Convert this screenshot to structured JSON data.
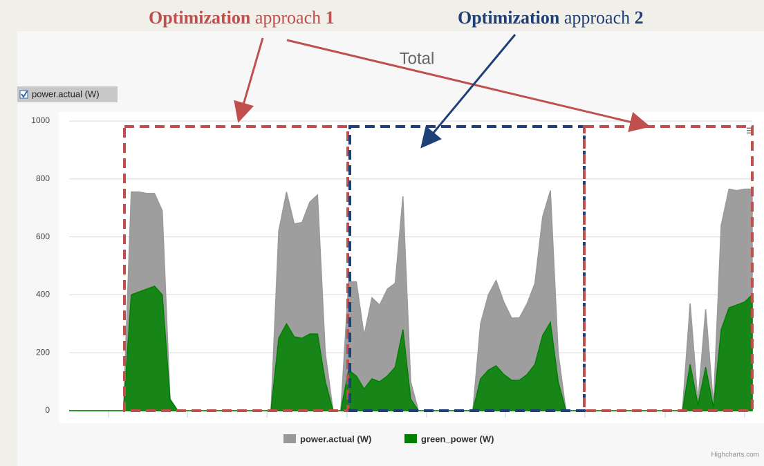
{
  "chart_data": {
    "type": "area",
    "title": "Total",
    "checkbox_label": "power.actual (W)",
    "credit": "Highcharts.com",
    "annotations": [
      {
        "bold": "Optimization",
        "text": "approach",
        "number": "1",
        "color": "#c0504d"
      },
      {
        "bold": "Optimization",
        "text": "approach",
        "number": "2",
        "color": "#1f3f77"
      }
    ],
    "ylim": [
      0,
      1000
    ],
    "yticks": [
      0,
      200,
      400,
      600,
      800,
      1000
    ],
    "grid": true,
    "series": [
      {
        "name": "power.actual (W)",
        "color": "#999999",
        "values": [
          0,
          0,
          0,
          0,
          0,
          0,
          0,
          0,
          755,
          755,
          750,
          750,
          690,
          40,
          0,
          0,
          0,
          0,
          0,
          0,
          0,
          0,
          0,
          0,
          0,
          0,
          0,
          620,
          755,
          645,
          650,
          720,
          745,
          200,
          0,
          0,
          445,
          445,
          260,
          390,
          365,
          420,
          440,
          740,
          100,
          0,
          0,
          0,
          0,
          0,
          0,
          0,
          0,
          300,
          400,
          450,
          375,
          320,
          320,
          370,
          440,
          670,
          760,
          200,
          0,
          0,
          0,
          0,
          0,
          0,
          0,
          0,
          0,
          0,
          0,
          0,
          0,
          0,
          0,
          0,
          370,
          30,
          350,
          20,
          640,
          765,
          760,
          765,
          765
        ]
      },
      {
        "name": "green_power (W)",
        "color": "#008000",
        "values": [
          0,
          0,
          0,
          0,
          0,
          0,
          0,
          0,
          400,
          410,
          420,
          430,
          400,
          40,
          0,
          0,
          0,
          0,
          0,
          0,
          0,
          0,
          0,
          0,
          0,
          0,
          0,
          250,
          300,
          255,
          250,
          265,
          265,
          100,
          0,
          0,
          140,
          120,
          75,
          110,
          100,
          120,
          150,
          280,
          40,
          0,
          0,
          0,
          0,
          0,
          0,
          0,
          0,
          110,
          140,
          155,
          125,
          105,
          105,
          125,
          160,
          260,
          305,
          100,
          0,
          0,
          0,
          0,
          0,
          0,
          0,
          0,
          0,
          0,
          0,
          0,
          0,
          0,
          0,
          0,
          160,
          20,
          150,
          10,
          280,
          355,
          365,
          375,
          400
        ]
      }
    ]
  }
}
